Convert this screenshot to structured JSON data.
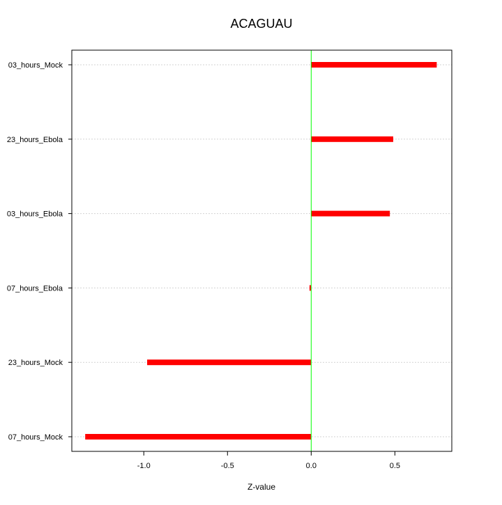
{
  "chart_data": {
    "type": "bar",
    "orientation": "horizontal",
    "title": "ACAGUAU",
    "xlabel": "Z-value",
    "ylabel": "",
    "categories": [
      "03_hours_Mock",
      "23_hours_Ebola",
      "03_hours_Ebola",
      "07_hours_Ebola",
      "23_hours_Mock",
      "07_hours_Mock"
    ],
    "values": [
      0.75,
      0.49,
      0.47,
      -0.01,
      -0.98,
      -1.35
    ],
    "xlim": [
      -1.43,
      0.84
    ],
    "xticks": [
      -1.0,
      -0.5,
      0.0,
      0.5
    ],
    "xtick_labels": [
      "-1.0",
      "-0.5",
      "0.0",
      "0.5"
    ],
    "reference_line": 0,
    "grid": "horizontal dotted",
    "colors": {
      "bar": "#ff0000",
      "reference_line": "#00ff00",
      "grid": "#d3d3d3"
    }
  }
}
